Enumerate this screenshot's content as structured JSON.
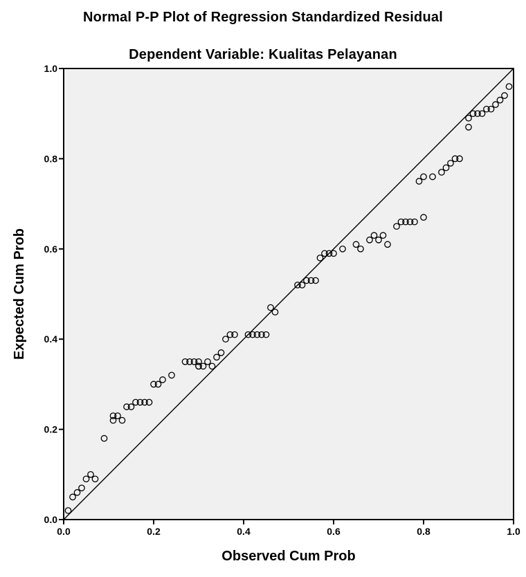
{
  "chart_data": {
    "type": "scatter",
    "title": "Normal P-P Plot of Regression Standardized Residual",
    "subtitle": "Dependent Variable: Kualitas Pelayanan",
    "xlabel": "Observed Cum Prob",
    "ylabel": "Expected Cum Prob",
    "xlim": [
      0,
      1
    ],
    "ylim": [
      0,
      1
    ],
    "xticks": [
      "0.0",
      "0.2",
      "0.4",
      "0.6",
      "0.8",
      "1.0"
    ],
    "yticks": [
      "0.0",
      "0.2",
      "0.4",
      "0.6",
      "0.8",
      "1.0"
    ],
    "reference_line": {
      "from": [
        0,
        0
      ],
      "to": [
        1,
        1
      ]
    },
    "grid": false,
    "colors": {
      "plot_background": "#f0f0f0",
      "points": "#000000",
      "reference_line": "#000000"
    },
    "x": [
      0.01,
      0.02,
      0.03,
      0.04,
      0.05,
      0.06,
      0.07,
      0.09,
      0.11,
      0.11,
      0.12,
      0.13,
      0.14,
      0.15,
      0.16,
      0.17,
      0.18,
      0.19,
      0.2,
      0.21,
      0.22,
      0.24,
      0.27,
      0.28,
      0.29,
      0.3,
      0.3,
      0.3,
      0.31,
      0.32,
      0.33,
      0.34,
      0.35,
      0.36,
      0.37,
      0.38,
      0.41,
      0.42,
      0.43,
      0.44,
      0.45,
      0.46,
      0.47,
      0.52,
      0.53,
      0.54,
      0.55,
      0.56,
      0.57,
      0.58,
      0.59,
      0.6,
      0.62,
      0.65,
      0.66,
      0.68,
      0.69,
      0.7,
      0.71,
      0.72,
      0.74,
      0.75,
      0.76,
      0.77,
      0.78,
      0.8,
      0.79,
      0.8,
      0.82,
      0.84,
      0.85,
      0.86,
      0.87,
      0.88,
      0.9,
      0.9,
      0.91,
      0.92,
      0.93,
      0.94,
      0.95,
      0.96,
      0.97,
      0.98,
      0.99
    ],
    "y": [
      0.02,
      0.05,
      0.06,
      0.07,
      0.09,
      0.1,
      0.09,
      0.18,
      0.22,
      0.23,
      0.23,
      0.22,
      0.25,
      0.25,
      0.26,
      0.26,
      0.26,
      0.26,
      0.3,
      0.3,
      0.31,
      0.32,
      0.35,
      0.35,
      0.35,
      0.34,
      0.34,
      0.35,
      0.34,
      0.35,
      0.34,
      0.36,
      0.37,
      0.4,
      0.41,
      0.41,
      0.41,
      0.41,
      0.41,
      0.41,
      0.41,
      0.47,
      0.46,
      0.52,
      0.52,
      0.53,
      0.53,
      0.53,
      0.58,
      0.59,
      0.59,
      0.59,
      0.6,
      0.61,
      0.6,
      0.62,
      0.63,
      0.62,
      0.63,
      0.61,
      0.65,
      0.66,
      0.66,
      0.66,
      0.66,
      0.67,
      0.75,
      0.76,
      0.76,
      0.77,
      0.78,
      0.79,
      0.8,
      0.8,
      0.87,
      0.89,
      0.9,
      0.9,
      0.9,
      0.91,
      0.91,
      0.92,
      0.93,
      0.94,
      0.96
    ]
  }
}
